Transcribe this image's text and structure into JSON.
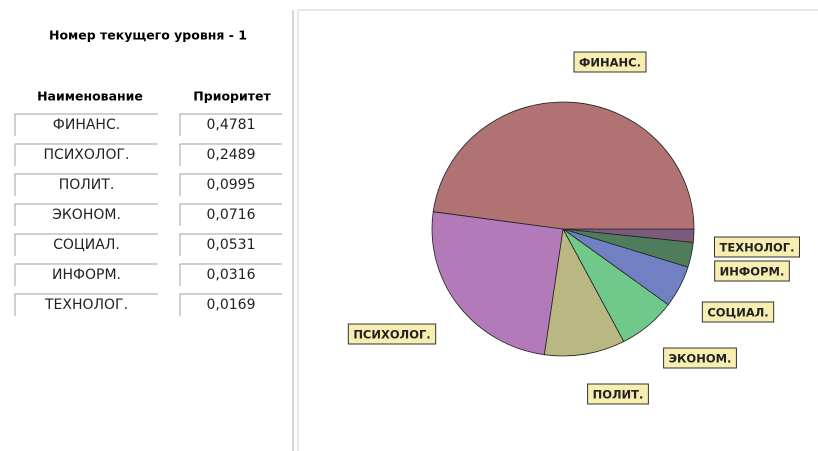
{
  "header": {
    "title": "Номер текущего уровня - 1"
  },
  "table": {
    "headers": [
      "Наименование",
      "Приоритет"
    ]
  },
  "chart_data": {
    "type": "pie",
    "categories": [
      "ФИНАНС.",
      "ПСИХОЛОГ.",
      "ПОЛИТ.",
      "ЭКОНОМ.",
      "СОЦИАЛ.",
      "ИНФОРМ.",
      "ТЕХНОЛОГ."
    ],
    "values": [
      0.4781,
      0.2489,
      0.0995,
      0.0716,
      0.0531,
      0.0316,
      0.0169
    ],
    "value_labels": [
      "0,4781",
      "0,2489",
      "0,0995",
      "0,0716",
      "0,0531",
      "0,0316",
      "0,0169"
    ],
    "colors": [
      "#b07272",
      "#b27ab9",
      "#b9b883",
      "#70c98b",
      "#7080c2",
      "#4f7d5b",
      "#7c5a7e"
    ]
  }
}
